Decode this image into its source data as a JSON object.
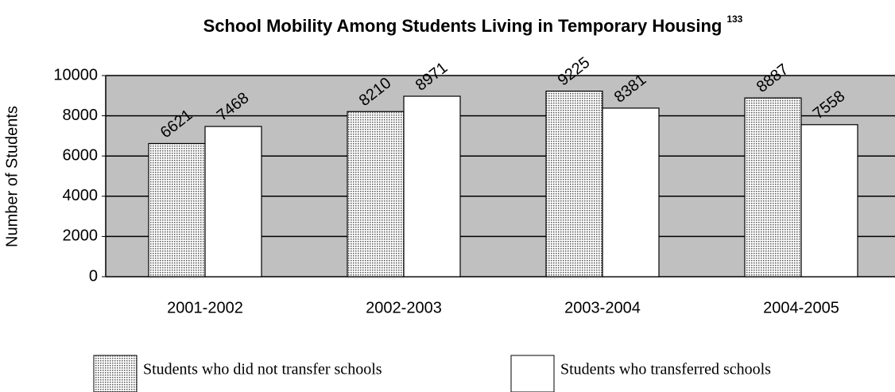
{
  "chart_data": {
    "type": "bar",
    "title": "School Mobility Among Students Living in Temporary Housing",
    "title_superscript": "133",
    "y_label": "Number of Students",
    "categories": [
      "2001-2002",
      "2002-2003",
      "2003-2004",
      "2004-2005"
    ],
    "series": [
      {
        "name": "Students who did not transfer schools",
        "color": "#d0d0d0",
        "pattern": "dotted",
        "values": [
          6621,
          8210,
          9225,
          8887
        ]
      },
      {
        "name": "Students who transferred schools",
        "color": "#ffffff",
        "values": [
          7468,
          8971,
          8381,
          7558
        ]
      }
    ],
    "ylim": [
      0,
      10000
    ],
    "yticks": [
      0,
      2000,
      4000,
      6000,
      8000,
      10000
    ],
    "grid": true,
    "plot_background": "#c0c0c0",
    "legend": "bottom"
  }
}
